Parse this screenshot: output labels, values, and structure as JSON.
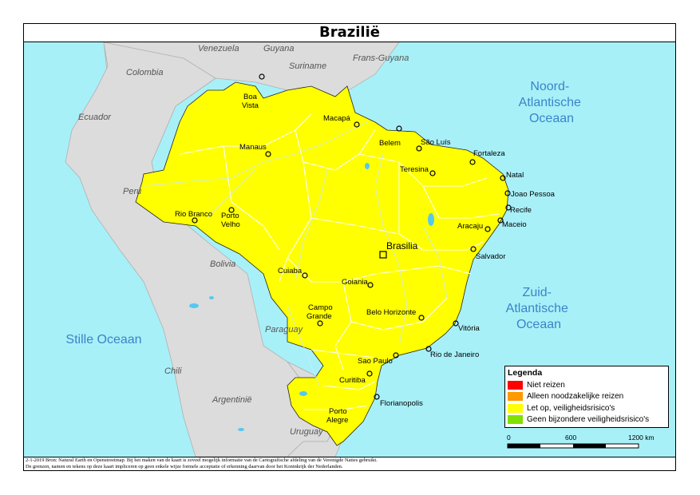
{
  "title": "Brazilië",
  "colors": {
    "ocean": "#a8f0f8",
    "brazil": "#ffff00",
    "neighbor": "#dcdcdc",
    "border": "#ffffff",
    "city": "#000000",
    "ocean_text": "#3a84c9"
  },
  "oceans": [
    {
      "lines": [
        "Noord-",
        "Atlantische",
        "Oceaan"
      ]
    },
    {
      "lines": [
        "Zuid-",
        "Atlantische",
        "Oceaan"
      ]
    },
    {
      "lines": [
        "Stille Oceaan"
      ]
    }
  ],
  "neighbors": [
    "Venezuela",
    "Guyana",
    "Suriname",
    "Frans-Guyana",
    "Colombia",
    "Ecuador",
    "Peru",
    "Bolivia",
    "Paraguay",
    "Chili",
    "Argentinië",
    "Uruguay"
  ],
  "capital": "Brasilia",
  "cities": [
    {
      "name": "Boa Vista",
      "lines": [
        "Boa",
        "Vista"
      ]
    },
    {
      "name": "Macapá",
      "lines": [
        "Macapá"
      ]
    },
    {
      "name": "Belem",
      "lines": [
        "Belem"
      ]
    },
    {
      "name": "São Luís",
      "lines": [
        "São Luís"
      ]
    },
    {
      "name": "Manaus",
      "lines": [
        "Manaus"
      ]
    },
    {
      "name": "Fortaleza",
      "lines": [
        "Fortaleza"
      ]
    },
    {
      "name": "Teresina",
      "lines": [
        "Teresina"
      ]
    },
    {
      "name": "Natal",
      "lines": [
        "Natal"
      ]
    },
    {
      "name": "Joao Pessoa",
      "lines": [
        "Joao Pessoa"
      ]
    },
    {
      "name": "Recife",
      "lines": [
        "Recife"
      ]
    },
    {
      "name": "Maceio",
      "lines": [
        "Maceio"
      ]
    },
    {
      "name": "Aracaju",
      "lines": [
        "Aracaju"
      ]
    },
    {
      "name": "Rio Branco",
      "lines": [
        "Rio Branco"
      ]
    },
    {
      "name": "Porto Velho",
      "lines": [
        "Porto",
        "Velho"
      ]
    },
    {
      "name": "Salvador",
      "lines": [
        "Salvador"
      ]
    },
    {
      "name": "Cuiaba",
      "lines": [
        "Cuiaba"
      ]
    },
    {
      "name": "Goiania",
      "lines": [
        "Goiania"
      ]
    },
    {
      "name": "Campo Grande",
      "lines": [
        "Campo",
        "Grande"
      ]
    },
    {
      "name": "Belo Horizonte",
      "lines": [
        "Belo Horizonte"
      ]
    },
    {
      "name": "Vitória",
      "lines": [
        "Vitória"
      ]
    },
    {
      "name": "Rio de Janeiro",
      "lines": [
        "Rio de Janeiro"
      ]
    },
    {
      "name": "Sao Paulo",
      "lines": [
        "Sao Paulo"
      ]
    },
    {
      "name": "Curitiba",
      "lines": [
        "Curitiba"
      ]
    },
    {
      "name": "Florianopolis",
      "lines": [
        "Florianopolis"
      ]
    },
    {
      "name": "Porto Alegre",
      "lines": [
        "Porto",
        "Alegre"
      ]
    }
  ],
  "legend": {
    "title": "Legenda",
    "items": [
      {
        "label": "Niet reizen",
        "color": "#ff0000"
      },
      {
        "label": "Alleen noodzakelijke reizen",
        "color": "#ff9900"
      },
      {
        "label": "Let op, veiligheidsrisico's",
        "color": "#ffff00"
      },
      {
        "label": "Geen bijzondere veiligheidsrisico's",
        "color": "#80e000"
      }
    ]
  },
  "scale": {
    "ticks": [
      "0",
      "600",
      "1200 km"
    ]
  },
  "footer": {
    "line1": "2-1-2019 Bron: Natural Earth en Openstreetmap. Bij het maken van de kaart is zoveel mogelijk informatie van de Cartografische afdeling van de Verenigde Naties gebruikt.",
    "line2": "De grenzen, namen en tekens op deze kaart impliceren op geen enkele wijze formele acceptatie of erkenning daarvan door het Koninkrijk der Nederlanden."
  }
}
